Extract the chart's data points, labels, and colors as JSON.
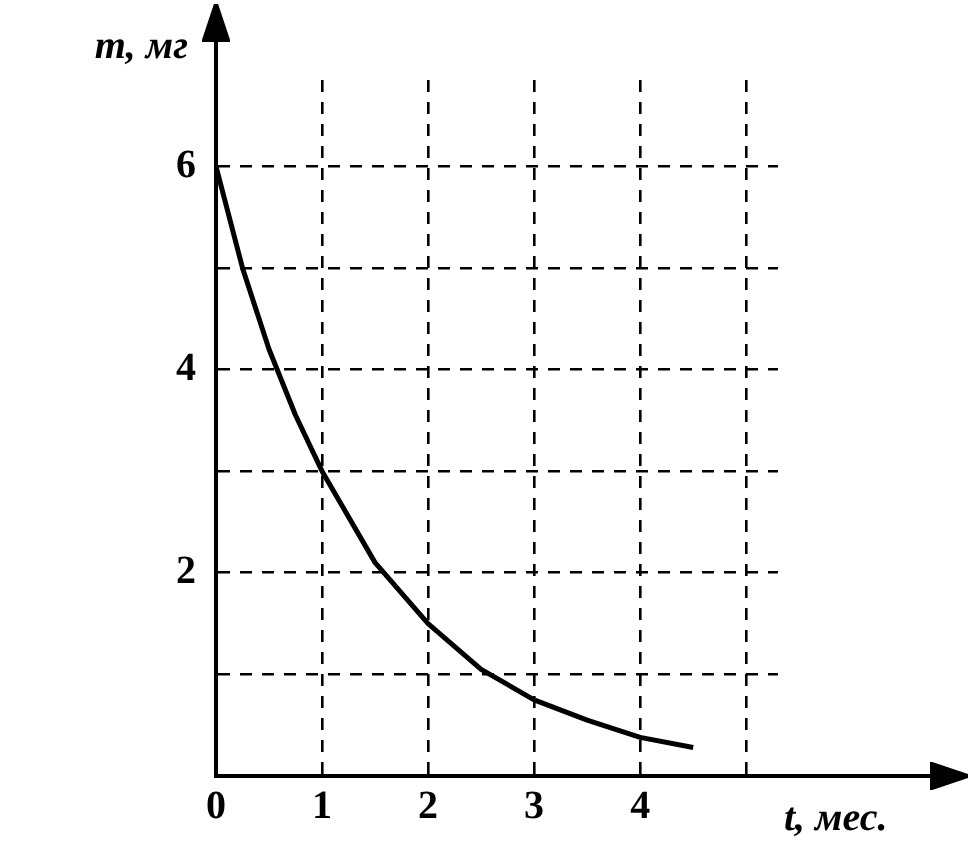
{
  "chart_data": {
    "type": "line",
    "xlabel": "t, мес.",
    "ylabel": "m, мг",
    "x": [
      0,
      0.25,
      0.5,
      0.75,
      1,
      1.5,
      2,
      2.5,
      3,
      3.5,
      4,
      4.5
    ],
    "series": [
      {
        "color": "#000000",
        "values": [
          6,
          5.0,
          4.2,
          3.55,
          3,
          2.1,
          1.5,
          1.05,
          0.75,
          0.55,
          0.38,
          0.28
        ]
      }
    ],
    "xlim": [
      0,
      5.3
    ],
    "ylim": [
      0,
      6.85
    ],
    "xticks": [
      0,
      1,
      2,
      3,
      4,
      {
        "value": 5,
        "label": null
      }
    ],
    "yticks": [
      {
        "value": 1,
        "label": null
      },
      2,
      {
        "value": 3,
        "label": null
      },
      4,
      {
        "value": 5,
        "label": null
      },
      6
    ],
    "grid": true,
    "legend": false,
    "marker": "none",
    "line_style": "solid"
  }
}
